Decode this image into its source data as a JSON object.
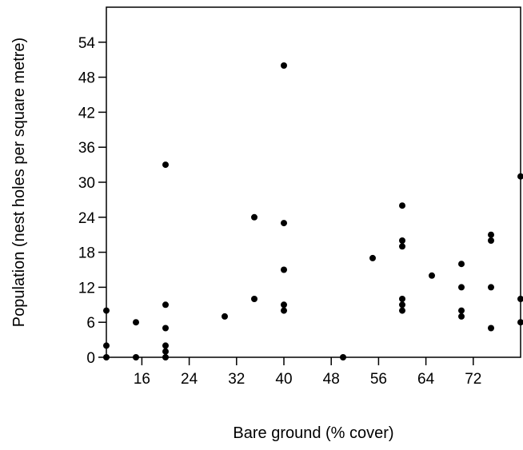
{
  "chart_data": {
    "type": "scatter",
    "title": "",
    "xlabel": "Bare ground (% cover)",
    "ylabel": "Population (nest holes per square metre)",
    "xlim": [
      10,
      80
    ],
    "ylim": [
      0,
      60
    ],
    "xticks": [
      16,
      24,
      32,
      40,
      48,
      56,
      64,
      72
    ],
    "yticks": [
      0,
      6,
      12,
      18,
      24,
      30,
      36,
      42,
      48,
      54
    ],
    "grid": false,
    "colors": {
      "marker": "#000000",
      "axis": "#000000",
      "background": "#ffffff"
    },
    "series": [
      {
        "points": [
          [
            10,
            0
          ],
          [
            10,
            2
          ],
          [
            10,
            8
          ],
          [
            15,
            0
          ],
          [
            15,
            6
          ],
          [
            20,
            0
          ],
          [
            20,
            1
          ],
          [
            20,
            2
          ],
          [
            20,
            5
          ],
          [
            20,
            9
          ],
          [
            20,
            33
          ],
          [
            30,
            7
          ],
          [
            35,
            10
          ],
          [
            35,
            24
          ],
          [
            40,
            8
          ],
          [
            40,
            9
          ],
          [
            40,
            15
          ],
          [
            40,
            23
          ],
          [
            40,
            50
          ],
          [
            50,
            0
          ],
          [
            55,
            17
          ],
          [
            60,
            8
          ],
          [
            60,
            9
          ],
          [
            60,
            10
          ],
          [
            60,
            19
          ],
          [
            60,
            20
          ],
          [
            60,
            26
          ],
          [
            65,
            14
          ],
          [
            70,
            7
          ],
          [
            70,
            8
          ],
          [
            70,
            12
          ],
          [
            70,
            16
          ],
          [
            75,
            5
          ],
          [
            75,
            12
          ],
          [
            75,
            20
          ],
          [
            75,
            21
          ],
          [
            80,
            6
          ],
          [
            80,
            10
          ],
          [
            80,
            31
          ]
        ]
      }
    ]
  }
}
